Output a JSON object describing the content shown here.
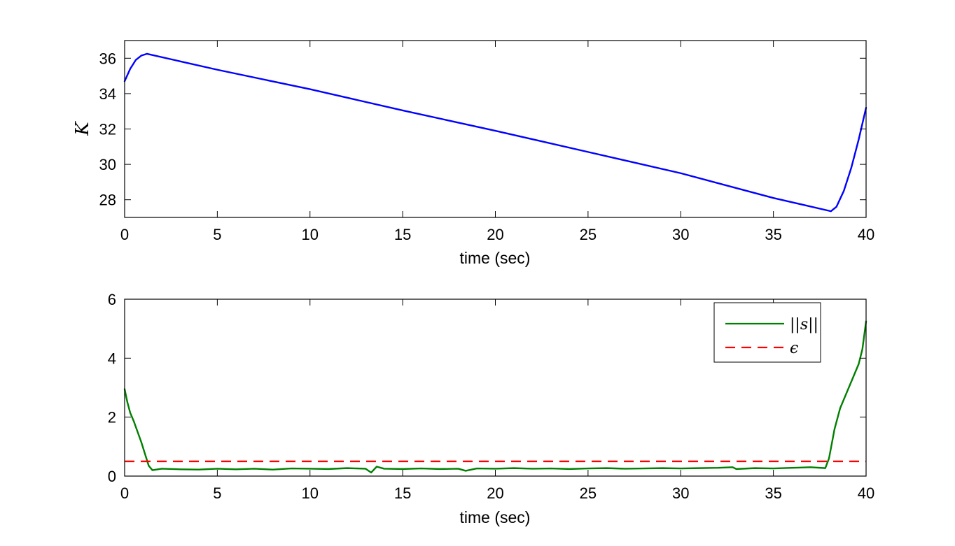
{
  "chart_data": [
    {
      "type": "line",
      "title": "",
      "xlabel": "time (sec)",
      "ylabel": "K",
      "xlim": [
        0,
        40
      ],
      "ylim": [
        27,
        37
      ],
      "xticks": [
        0,
        5,
        10,
        15,
        20,
        25,
        30,
        35,
        40
      ],
      "yticks": [
        28,
        30,
        32,
        34,
        36
      ],
      "grid": false,
      "series": [
        {
          "color": "#0000ff",
          "style": "solid",
          "x": [
            0,
            0.3,
            0.6,
            0.9,
            1.2,
            5,
            10,
            15,
            20,
            25,
            30,
            35,
            38.1,
            38.4,
            38.8,
            39.2,
            39.6,
            40
          ],
          "y": [
            34.7,
            35.4,
            35.9,
            36.15,
            36.25,
            35.35,
            34.25,
            33.05,
            31.9,
            30.7,
            29.5,
            28.1,
            27.35,
            27.6,
            28.5,
            29.8,
            31.4,
            33.2
          ]
        }
      ]
    },
    {
      "type": "line",
      "title": "",
      "xlabel": "time (sec)",
      "ylabel": "",
      "xlim": [
        0,
        40
      ],
      "ylim": [
        0,
        6
      ],
      "xticks": [
        0,
        5,
        10,
        15,
        20,
        25,
        30,
        35,
        40
      ],
      "yticks": [
        0,
        2,
        4,
        6
      ],
      "grid": false,
      "legend": {
        "placement": "top-right",
        "entries": [
          "||s||",
          "ϵ"
        ]
      },
      "series": [
        {
          "name": "||s||",
          "color": "#007f00",
          "style": "solid",
          "x": [
            0,
            0.15,
            0.3,
            0.5,
            0.7,
            0.9,
            1.1,
            1.3,
            1.5,
            2,
            3,
            4,
            5,
            6,
            7,
            8,
            9,
            10,
            11,
            12,
            13,
            13.3,
            13.6,
            14,
            15,
            16,
            17,
            18,
            18.4,
            19,
            20,
            21,
            22,
            23,
            24,
            25,
            26,
            27,
            28,
            29,
            30,
            31,
            32,
            32.8,
            33,
            34,
            35,
            36,
            37,
            37.8,
            38,
            38.3,
            38.6,
            39,
            39.3,
            39.6,
            39.8,
            40
          ],
          "y": [
            2.95,
            2.5,
            2.15,
            1.85,
            1.5,
            1.15,
            0.75,
            0.35,
            0.2,
            0.25,
            0.23,
            0.22,
            0.25,
            0.23,
            0.25,
            0.22,
            0.26,
            0.25,
            0.24,
            0.27,
            0.25,
            0.12,
            0.32,
            0.25,
            0.24,
            0.26,
            0.24,
            0.25,
            0.18,
            0.26,
            0.25,
            0.27,
            0.25,
            0.26,
            0.24,
            0.26,
            0.27,
            0.25,
            0.26,
            0.27,
            0.26,
            0.27,
            0.28,
            0.3,
            0.24,
            0.27,
            0.26,
            0.28,
            0.3,
            0.27,
            0.6,
            1.6,
            2.3,
            2.9,
            3.35,
            3.8,
            4.3,
            5.25
          ]
        },
        {
          "name": "ϵ",
          "color": "#ff0000",
          "style": "dashed",
          "x": [
            0,
            40
          ],
          "y": [
            0.5,
            0.5
          ]
        }
      ]
    }
  ]
}
